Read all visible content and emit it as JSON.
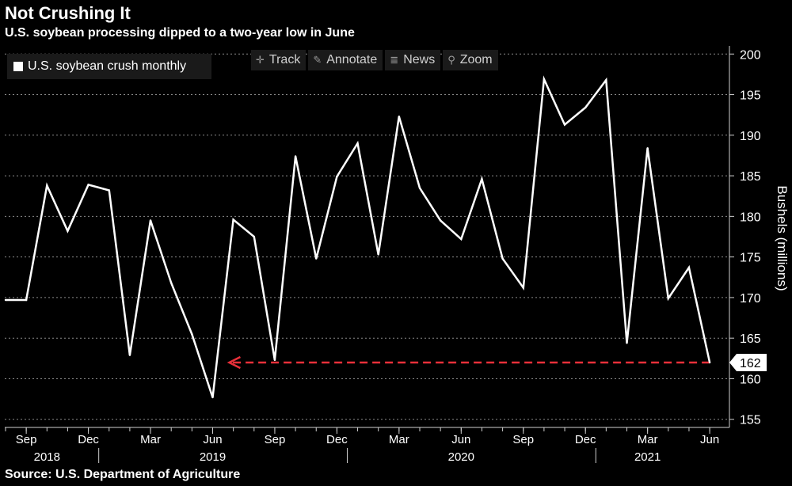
{
  "header": {
    "title": "Not Crushing It",
    "subtitle": "U.S. soybean processing dipped to a two-year low in June"
  },
  "footer": {
    "source": "Source: U.S. Department of Agriculture"
  },
  "toolbar": {
    "track": "Track",
    "annotate": "Annotate",
    "news": "News",
    "zoom": "Zoom"
  },
  "legend": {
    "label": "U.S. soybean crush monthly"
  },
  "colors": {
    "line": "#ffffff",
    "arrow": "#e8303a",
    "grid": "#8a8a8a",
    "background": "#000000"
  },
  "chart_data": {
    "type": "line",
    "title": "Not Crushing It",
    "subtitle": "U.S. soybean processing dipped to a two-year low in June",
    "ylabel": "Bushels (millions)",
    "ylim": [
      154,
      201
    ],
    "yticks": [
      155,
      160,
      165,
      170,
      175,
      180,
      185,
      190,
      195,
      200
    ],
    "grid": "horizontal dotted",
    "legend_position": "top-left",
    "month_ticks": [
      {
        "index": 1,
        "label": "Sep"
      },
      {
        "index": 4,
        "label": "Dec"
      },
      {
        "index": 7,
        "label": "Mar"
      },
      {
        "index": 10,
        "label": "Jun"
      },
      {
        "index": 13,
        "label": "Sep"
      },
      {
        "index": 16,
        "label": "Dec"
      },
      {
        "index": 19,
        "label": "Mar"
      },
      {
        "index": 22,
        "label": "Jun"
      },
      {
        "index": 25,
        "label": "Sep"
      },
      {
        "index": 28,
        "label": "Dec"
      },
      {
        "index": 31,
        "label": "Mar"
      },
      {
        "index": 34,
        "label": "Jun"
      }
    ],
    "year_labels": [
      {
        "center": 2,
        "label": "2018"
      },
      {
        "center": 10,
        "label": "2019"
      },
      {
        "center": 22,
        "label": "2020"
      },
      {
        "center": 31,
        "label": "2021"
      }
    ],
    "year_separators": [
      4.5,
      16.5,
      28.5
    ],
    "series": [
      {
        "name": "U.S. soybean crush monthly",
        "x": [
          "2018-08",
          "2018-09",
          "2018-10",
          "2018-11",
          "2018-12",
          "2019-01",
          "2019-02",
          "2019-03",
          "2019-04",
          "2019-05",
          "2019-06",
          "2019-07",
          "2019-08",
          "2019-09",
          "2019-10",
          "2019-11",
          "2019-12",
          "2020-01",
          "2020-02",
          "2020-03",
          "2020-04",
          "2020-05",
          "2020-06",
          "2020-07",
          "2020-08",
          "2020-09",
          "2020-10",
          "2020-11",
          "2020-12",
          "2021-01",
          "2021-02",
          "2021-03",
          "2021-04",
          "2021-05",
          "2021-06"
        ],
        "values": [
          169.7,
          169.7,
          183.8,
          178.2,
          183.9,
          183.2,
          162.9,
          179.5,
          171.8,
          165.5,
          157.7,
          179.6,
          177.5,
          162.3,
          187.4,
          174.8,
          184.9,
          189.0,
          175.3,
          192.3,
          183.5,
          179.5,
          177.2,
          184.6,
          174.8,
          171.2,
          196.9,
          191.3,
          193.4,
          196.8,
          164.4,
          188.4,
          169.9,
          173.7,
          162.0
        ]
      }
    ],
    "annotations": [
      {
        "type": "arrow",
        "style": "dashed",
        "color": "red",
        "from_index": 34,
        "to_index": 10.8,
        "value": 162.0
      },
      {
        "type": "value_label",
        "text": "162",
        "value": 162.0
      }
    ]
  }
}
